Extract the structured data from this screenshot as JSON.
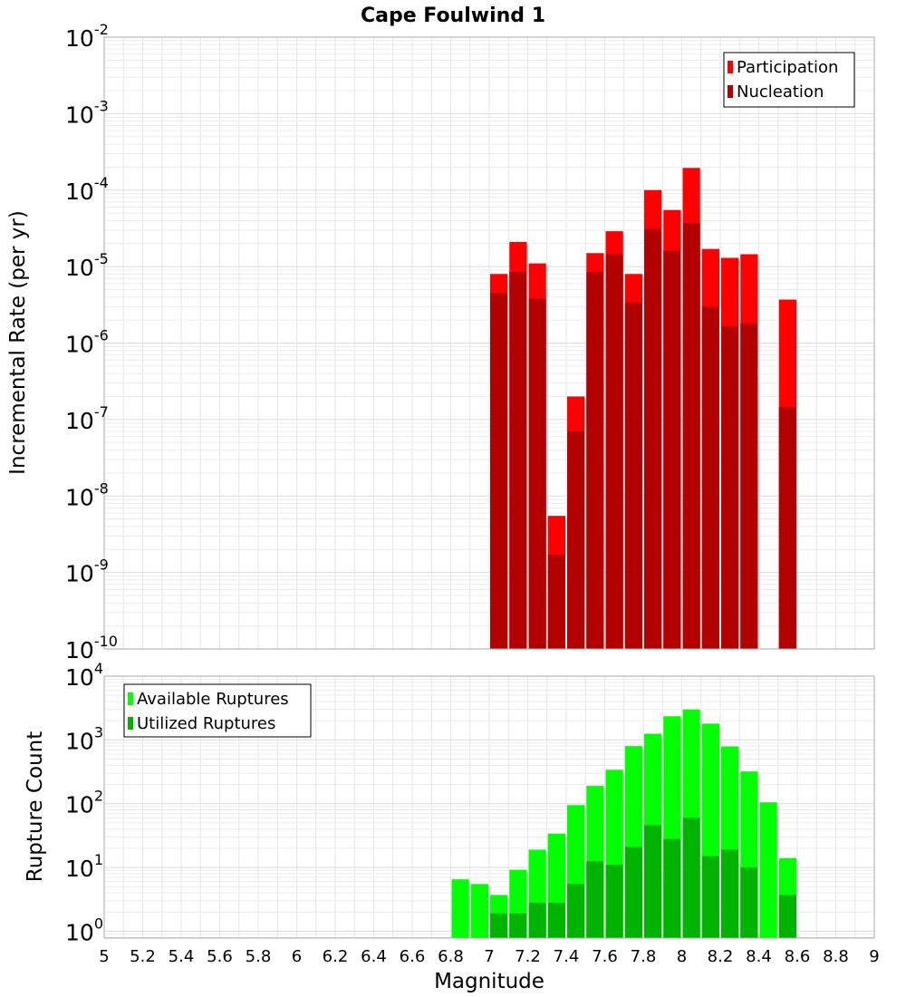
{
  "chart_data": {
    "title": "Cape Foulwind 1",
    "xlabel": "Magnitude",
    "xlim": [
      5,
      9
    ],
    "x_ticks": [
      "5",
      "5.2",
      "5.4",
      "5.6",
      "5.8",
      "6",
      "6.2",
      "6.4",
      "6.6",
      "6.8",
      "7",
      "7.2",
      "7.4",
      "7.6",
      "7.8",
      "8",
      "8.2",
      "8.4",
      "8.6",
      "8.8",
      "9"
    ],
    "bin_width": 0.1,
    "grid": true,
    "panels": [
      {
        "type": "bar",
        "ylabel": "Incremental Rate (per yr)",
        "yscale": "log",
        "ylim": [
          1e-10,
          0.01
        ],
        "y_tick_exponents": [
          "-10",
          "-9",
          "-8",
          "-7",
          "-6",
          "-5",
          "-4",
          "-3",
          "-2"
        ],
        "legend_position": "top-right",
        "series": [
          {
            "name": "Participation",
            "color": "#ff0000",
            "x": [
              7.05,
              7.15,
              7.25,
              7.35,
              7.45,
              7.55,
              7.65,
              7.75,
              7.85,
              7.95,
              8.05,
              8.15,
              8.25,
              8.35,
              8.55
            ],
            "values": [
              8e-06,
              2.1e-05,
              1.1e-05,
              5.5e-09,
              2e-07,
              1.5e-05,
              2.9e-05,
              8e-06,
              0.0001,
              5.5e-05,
              0.000195,
              1.7e-05,
              1.3e-05,
              1.45e-05,
              3.7e-06
            ]
          },
          {
            "name": "Nucleation",
            "color": "#b30000",
            "x": [
              7.05,
              7.15,
              7.25,
              7.35,
              7.45,
              7.55,
              7.65,
              7.75,
              7.85,
              7.95,
              8.05,
              8.15,
              8.25,
              8.35,
              8.55
            ],
            "values": [
              4.5e-06,
              8.5e-06,
              3.8e-06,
              1.7e-09,
              7e-08,
              8.5e-06,
              1.45e-05,
              3.4e-06,
              3.1e-05,
              1.6e-05,
              3.7e-05,
              3e-06,
              1.65e-06,
              1.8e-06,
              1.45e-07
            ]
          }
        ]
      },
      {
        "type": "bar",
        "ylabel": "Rupture Count",
        "yscale": "log",
        "ylim": [
          0.78,
          10000
        ],
        "y_tick_exponents": [
          "0",
          "1",
          "2",
          "3",
          "4"
        ],
        "legend_position": "top-left",
        "series": [
          {
            "name": "Available Ruptures",
            "color": "#00ff00",
            "x": [
              6.85,
              6.95,
              7.05,
              7.15,
              7.25,
              7.35,
              7.45,
              7.55,
              7.65,
              7.75,
              7.85,
              7.95,
              8.05,
              8.15,
              8.25,
              8.35,
              8.45,
              8.55
            ],
            "values": [
              6.5,
              5.5,
              3.7,
              9.2,
              19,
              34,
              95,
              190,
              340,
              800,
              1250,
              2350,
              3000,
              1800,
              790,
              320,
              105,
              14
            ]
          },
          {
            "name": "Utilized Ruptures",
            "color": "#00b300",
            "x": [
              7.05,
              7.15,
              7.25,
              7.35,
              7.45,
              7.55,
              7.65,
              7.75,
              7.85,
              7.95,
              8.05,
              8.15,
              8.25,
              8.35,
              8.55
            ],
            "values": [
              1.9,
              1.9,
              2.8,
              2.8,
              5.5,
              12.5,
              11,
              21,
              46,
              28,
              60,
              15,
              19,
              10,
              3.7
            ]
          }
        ]
      }
    ]
  }
}
